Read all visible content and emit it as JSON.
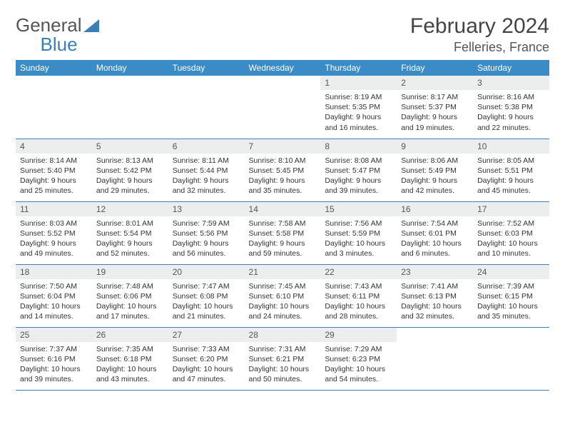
{
  "brand": {
    "part1": "General",
    "part2": "Blue"
  },
  "title": "February 2024",
  "location": "Felleries, France",
  "colors": {
    "header_bg": "#3b8bc6",
    "header_text": "#ffffff",
    "rule": "#3b7fb6",
    "daynum_bg": "#eceded",
    "text": "#333333"
  },
  "weekdays": [
    "Sunday",
    "Monday",
    "Tuesday",
    "Wednesday",
    "Thursday",
    "Friday",
    "Saturday"
  ],
  "weeks": [
    [
      null,
      null,
      null,
      null,
      {
        "n": "1",
        "sr": "8:19 AM",
        "ss": "5:35 PM",
        "dl": "9 hours and 16 minutes."
      },
      {
        "n": "2",
        "sr": "8:17 AM",
        "ss": "5:37 PM",
        "dl": "9 hours and 19 minutes."
      },
      {
        "n": "3",
        "sr": "8:16 AM",
        "ss": "5:38 PM",
        "dl": "9 hours and 22 minutes."
      }
    ],
    [
      {
        "n": "4",
        "sr": "8:14 AM",
        "ss": "5:40 PM",
        "dl": "9 hours and 25 minutes."
      },
      {
        "n": "5",
        "sr": "8:13 AM",
        "ss": "5:42 PM",
        "dl": "9 hours and 29 minutes."
      },
      {
        "n": "6",
        "sr": "8:11 AM",
        "ss": "5:44 PM",
        "dl": "9 hours and 32 minutes."
      },
      {
        "n": "7",
        "sr": "8:10 AM",
        "ss": "5:45 PM",
        "dl": "9 hours and 35 minutes."
      },
      {
        "n": "8",
        "sr": "8:08 AM",
        "ss": "5:47 PM",
        "dl": "9 hours and 39 minutes."
      },
      {
        "n": "9",
        "sr": "8:06 AM",
        "ss": "5:49 PM",
        "dl": "9 hours and 42 minutes."
      },
      {
        "n": "10",
        "sr": "8:05 AM",
        "ss": "5:51 PM",
        "dl": "9 hours and 45 minutes."
      }
    ],
    [
      {
        "n": "11",
        "sr": "8:03 AM",
        "ss": "5:52 PM",
        "dl": "9 hours and 49 minutes."
      },
      {
        "n": "12",
        "sr": "8:01 AM",
        "ss": "5:54 PM",
        "dl": "9 hours and 52 minutes."
      },
      {
        "n": "13",
        "sr": "7:59 AM",
        "ss": "5:56 PM",
        "dl": "9 hours and 56 minutes."
      },
      {
        "n": "14",
        "sr": "7:58 AM",
        "ss": "5:58 PM",
        "dl": "9 hours and 59 minutes."
      },
      {
        "n": "15",
        "sr": "7:56 AM",
        "ss": "5:59 PM",
        "dl": "10 hours and 3 minutes."
      },
      {
        "n": "16",
        "sr": "7:54 AM",
        "ss": "6:01 PM",
        "dl": "10 hours and 6 minutes."
      },
      {
        "n": "17",
        "sr": "7:52 AM",
        "ss": "6:03 PM",
        "dl": "10 hours and 10 minutes."
      }
    ],
    [
      {
        "n": "18",
        "sr": "7:50 AM",
        "ss": "6:04 PM",
        "dl": "10 hours and 14 minutes."
      },
      {
        "n": "19",
        "sr": "7:48 AM",
        "ss": "6:06 PM",
        "dl": "10 hours and 17 minutes."
      },
      {
        "n": "20",
        "sr": "7:47 AM",
        "ss": "6:08 PM",
        "dl": "10 hours and 21 minutes."
      },
      {
        "n": "21",
        "sr": "7:45 AM",
        "ss": "6:10 PM",
        "dl": "10 hours and 24 minutes."
      },
      {
        "n": "22",
        "sr": "7:43 AM",
        "ss": "6:11 PM",
        "dl": "10 hours and 28 minutes."
      },
      {
        "n": "23",
        "sr": "7:41 AM",
        "ss": "6:13 PM",
        "dl": "10 hours and 32 minutes."
      },
      {
        "n": "24",
        "sr": "7:39 AM",
        "ss": "6:15 PM",
        "dl": "10 hours and 35 minutes."
      }
    ],
    [
      {
        "n": "25",
        "sr": "7:37 AM",
        "ss": "6:16 PM",
        "dl": "10 hours and 39 minutes."
      },
      {
        "n": "26",
        "sr": "7:35 AM",
        "ss": "6:18 PM",
        "dl": "10 hours and 43 minutes."
      },
      {
        "n": "27",
        "sr": "7:33 AM",
        "ss": "6:20 PM",
        "dl": "10 hours and 47 minutes."
      },
      {
        "n": "28",
        "sr": "7:31 AM",
        "ss": "6:21 PM",
        "dl": "10 hours and 50 minutes."
      },
      {
        "n": "29",
        "sr": "7:29 AM",
        "ss": "6:23 PM",
        "dl": "10 hours and 54 minutes."
      },
      null,
      null
    ]
  ],
  "labels": {
    "sunrise": "Sunrise:",
    "sunset": "Sunset:",
    "daylight": "Daylight:"
  }
}
